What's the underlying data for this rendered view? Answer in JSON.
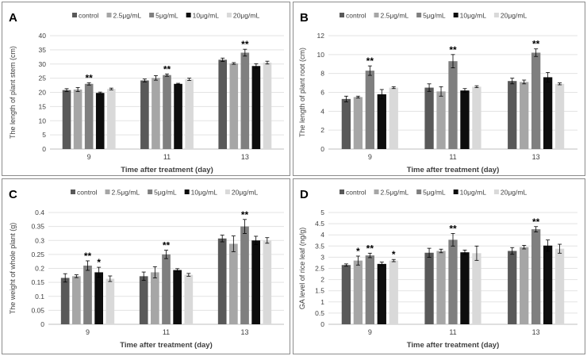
{
  "figure": {
    "chart_data": [
      {
        "type": "bar",
        "letter": "A",
        "ylabel": "The  length of plant stem (cm)",
        "xlabel": "Time after treatment (day)",
        "categories": [
          "9",
          "11",
          "13"
        ],
        "ylim": [
          0,
          40
        ],
        "yticks": [
          0,
          5,
          10,
          15,
          20,
          25,
          30,
          35,
          40
        ],
        "grid": true,
        "legend": "top",
        "series": [
          {
            "name": "control",
            "color": "#595959",
            "values": [
              20.8,
              24.2,
              31.5
            ],
            "errors": [
              0.5,
              0.5,
              0.6
            ]
          },
          {
            "name": "2.5μg/mL",
            "color": "#a6a6a6",
            "values": [
              21.0,
              25.1,
              30.2
            ],
            "errors": [
              0.7,
              0.8,
              0.3
            ]
          },
          {
            "name": "5μg/mL",
            "color": "#7f7f7f",
            "values": [
              23.0,
              26.1,
              34.0
            ],
            "errors": [
              0.4,
              0.4,
              1.2
            ]
          },
          {
            "name": "10μg/mL",
            "color": "#0d0d0d",
            "values": [
              19.8,
              23.0,
              29.3
            ],
            "errors": [
              0.3,
              0.2,
              0.8
            ]
          },
          {
            "name": "20μg/mL",
            "color": "#d9d9d9",
            "values": [
              21.2,
              24.6,
              30.5
            ],
            "errors": [
              0.3,
              0.4,
              0.5
            ]
          }
        ],
        "annotations": [
          {
            "text": "**",
            "category": "9",
            "series": "5μg/mL"
          },
          {
            "text": "**",
            "category": "11",
            "series": "5μg/mL"
          },
          {
            "text": "**",
            "category": "13",
            "series": "5μg/mL"
          }
        ]
      },
      {
        "type": "bar",
        "letter": "B",
        "ylabel": "The length of plant root (cm)",
        "xlabel": "Time after treatment (day)",
        "categories": [
          "9",
          "11",
          "13"
        ],
        "ylim": [
          0,
          12
        ],
        "yticks": [
          0,
          2,
          4,
          6,
          8,
          10,
          12
        ],
        "grid": true,
        "legend": "top",
        "series": [
          {
            "name": "control",
            "color": "#595959",
            "values": [
              5.3,
              6.5,
              7.2
            ],
            "errors": [
              0.3,
              0.4,
              0.3
            ]
          },
          {
            "name": "2.5μg/mL",
            "color": "#a6a6a6",
            "values": [
              5.5,
              6.1,
              7.1
            ],
            "errors": [
              0.1,
              0.5,
              0.2
            ]
          },
          {
            "name": "5μg/mL",
            "color": "#7f7f7f",
            "values": [
              8.3,
              9.3,
              10.2
            ],
            "errors": [
              0.5,
              0.7,
              0.4
            ]
          },
          {
            "name": "10μg/mL",
            "color": "#0d0d0d",
            "values": [
              5.8,
              6.2,
              7.6
            ],
            "errors": [
              0.5,
              0.2,
              0.5
            ]
          },
          {
            "name": "20μg/mL",
            "color": "#d9d9d9",
            "values": [
              6.5,
              6.6,
              6.9
            ],
            "errors": [
              0.1,
              0.1,
              0.1
            ]
          }
        ],
        "annotations": [
          {
            "text": "**",
            "category": "9",
            "series": "5μg/mL"
          },
          {
            "text": "**",
            "category": "11",
            "series": "5μg/mL"
          },
          {
            "text": "**",
            "category": "13",
            "series": "5μg/mL"
          }
        ]
      },
      {
        "type": "bar",
        "letter": "C",
        "ylabel": "The weight of whole plant (g)",
        "xlabel": "Time after treatment (day)",
        "categories": [
          "9",
          "11",
          "13"
        ],
        "ylim": [
          0,
          0.4
        ],
        "yticks": [
          "0",
          "0.05",
          "0.1",
          "0.15",
          "0.2",
          "0.25",
          "0.3",
          "0.35",
          "0.4"
        ],
        "grid": true,
        "legend": "top",
        "series": [
          {
            "name": "control",
            "color": "#595959",
            "values": [
              0.166,
              0.172,
              0.307
            ],
            "errors": [
              0.015,
              0.015,
              0.012
            ]
          },
          {
            "name": "2.5μg/mL",
            "color": "#a6a6a6",
            "values": [
              0.172,
              0.186,
              0.288
            ],
            "errors": [
              0.005,
              0.02,
              0.028
            ]
          },
          {
            "name": "5μg/mL",
            "color": "#7f7f7f",
            "values": [
              0.21,
              0.25,
              0.35
            ],
            "errors": [
              0.017,
              0.015,
              0.025
            ]
          },
          {
            "name": "10μg/mL",
            "color": "#0d0d0d",
            "values": [
              0.186,
              0.194,
              0.3
            ],
            "errors": [
              0.018,
              0.005,
              0.015
            ]
          },
          {
            "name": "20μg/mL",
            "color": "#d9d9d9",
            "values": [
              0.163,
              0.177,
              0.3
            ],
            "errors": [
              0.01,
              0.005,
              0.01
            ]
          }
        ],
        "annotations": [
          {
            "text": "**",
            "category": "9",
            "series": "5μg/mL"
          },
          {
            "text": "*",
            "category": "9",
            "series": "10μg/mL"
          },
          {
            "text": "**",
            "category": "11",
            "series": "5μg/mL"
          },
          {
            "text": "**",
            "category": "13",
            "series": "5μg/mL"
          }
        ]
      },
      {
        "type": "bar",
        "letter": "D",
        "ylabel": "GA level of rice leaf (ng/g)",
        "xlabel": "Time after treatment (day)",
        "categories": [
          "9",
          "11",
          "13"
        ],
        "ylim": [
          0,
          5
        ],
        "yticks": [
          "0",
          "0.5",
          "1",
          "1.5",
          "2",
          "2.5",
          "3",
          "3.5",
          "4",
          "4.5",
          "5"
        ],
        "grid": true,
        "legend": "top",
        "series": [
          {
            "name": "control",
            "color": "#595959",
            "values": [
              2.65,
              3.2,
              3.28
            ],
            "errors": [
              0.05,
              0.2,
              0.15
            ]
          },
          {
            "name": "2.5μg/mL",
            "color": "#a6a6a6",
            "values": [
              2.85,
              3.28,
              3.45
            ],
            "errors": [
              0.2,
              0.08,
              0.08
            ]
          },
          {
            "name": "5μg/mL",
            "color": "#7f7f7f",
            "values": [
              3.08,
              3.78,
              4.25
            ],
            "errors": [
              0.1,
              0.28,
              0.12
            ]
          },
          {
            "name": "10μg/mL",
            "color": "#0d0d0d",
            "values": [
              2.7,
              3.22,
              3.52
            ],
            "errors": [
              0.08,
              0.1,
              0.25
            ]
          },
          {
            "name": "20μg/mL",
            "color": "#d9d9d9",
            "values": [
              2.85,
              3.18,
              3.38
            ],
            "errors": [
              0.05,
              0.32,
              0.2
            ]
          }
        ],
        "annotations": [
          {
            "text": "*",
            "category": "9",
            "series": "2.5μg/mL"
          },
          {
            "text": "**",
            "category": "9",
            "series": "5μg/mL"
          },
          {
            "text": "*",
            "category": "9",
            "series": "20μg/mL"
          },
          {
            "text": "**",
            "category": "11",
            "series": "5μg/mL"
          },
          {
            "text": "**",
            "category": "13",
            "series": "5μg/mL"
          }
        ]
      }
    ]
  }
}
